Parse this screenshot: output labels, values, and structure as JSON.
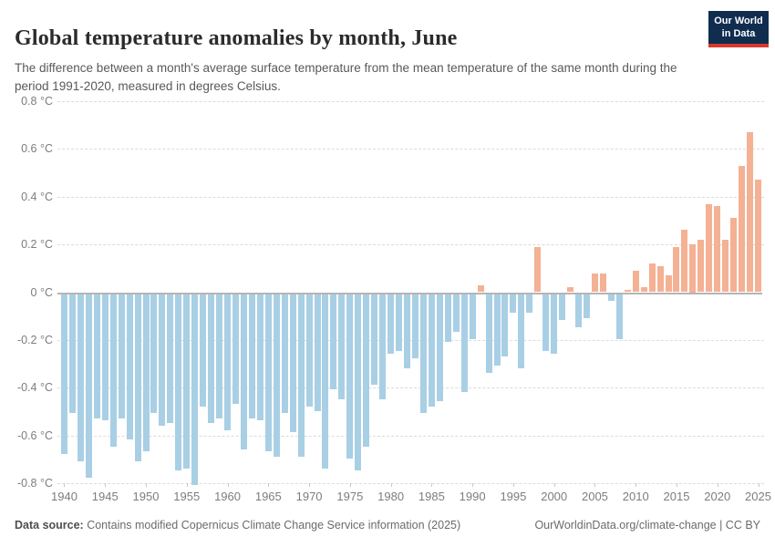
{
  "header": {
    "title": "Global temperature anomalies by month, June",
    "subtitle": "The difference between a month's average surface temperature from the mean temperature of the same month during the period 1991-2020, measured in degrees Celsius.",
    "logo": {
      "line1": "Our World",
      "line2": "in Data"
    }
  },
  "footer": {
    "source_label": "Data source:",
    "source_text": " Contains modified Copernicus Climate Change Service information (2025)",
    "link_text": "OurWorldinData.org/climate-change | CC BY"
  },
  "colors": {
    "positive_bar": "#f4b193",
    "negative_bar": "#a9cfe5",
    "zero_axis": "#b5b5b5",
    "gridline": "#dcdcdc",
    "tick_text": "#7d7d7d",
    "logo_navy": "#102d50",
    "logo_red": "#d7382f"
  },
  "chart_data": {
    "type": "bar",
    "title": "Global temperature anomalies by month, June",
    "xlabel": "",
    "ylabel": "degrees Celsius",
    "ylim": [
      -0.8,
      0.8
    ],
    "grid": "horizontal-dashed",
    "legend": "none",
    "x": [
      1940,
      1941,
      1942,
      1943,
      1944,
      1945,
      1946,
      1947,
      1948,
      1949,
      1950,
      1951,
      1952,
      1953,
      1954,
      1955,
      1956,
      1957,
      1958,
      1959,
      1960,
      1961,
      1962,
      1963,
      1964,
      1965,
      1966,
      1967,
      1968,
      1969,
      1970,
      1971,
      1972,
      1973,
      1974,
      1975,
      1976,
      1977,
      1978,
      1979,
      1980,
      1981,
      1982,
      1983,
      1984,
      1985,
      1986,
      1987,
      1988,
      1989,
      1990,
      1991,
      1992,
      1993,
      1994,
      1995,
      1996,
      1997,
      1998,
      1999,
      2000,
      2001,
      2002,
      2003,
      2004,
      2005,
      2006,
      2007,
      2008,
      2009,
      2010,
      2011,
      2012,
      2013,
      2014,
      2015,
      2016,
      2017,
      2018,
      2019,
      2020,
      2021,
      2022,
      2023,
      2024,
      2025
    ],
    "values": [
      -0.67,
      -0.5,
      -0.7,
      -0.77,
      -0.52,
      -0.53,
      -0.64,
      -0.52,
      -0.61,
      -0.7,
      -0.66,
      -0.5,
      -0.55,
      -0.54,
      -0.74,
      -0.73,
      -0.8,
      -0.47,
      -0.54,
      -0.52,
      -0.57,
      -0.46,
      -0.65,
      -0.52,
      -0.53,
      -0.66,
      -0.68,
      -0.5,
      -0.58,
      -0.68,
      -0.47,
      -0.49,
      -0.73,
      -0.4,
      -0.44,
      -0.69,
      -0.74,
      -0.64,
      -0.38,
      -0.44,
      -0.25,
      -0.24,
      -0.31,
      -0.27,
      -0.5,
      -0.47,
      -0.45,
      -0.2,
      -0.16,
      -0.41,
      -0.19,
      0.03,
      -0.33,
      -0.3,
      -0.26,
      -0.08,
      -0.31,
      -0.08,
      0.19,
      -0.24,
      -0.25,
      -0.11,
      0.02,
      -0.14,
      -0.1,
      0.08,
      0.08,
      -0.03,
      -0.19,
      0.01,
      0.09,
      0.02,
      0.12,
      0.11,
      0.07,
      0.19,
      0.26,
      0.2,
      0.22,
      0.37,
      0.36,
      0.22,
      0.31,
      0.53,
      0.67,
      0.47
    ],
    "yticks": [
      {
        "value": 0.8,
        "label": "0.8 °C"
      },
      {
        "value": 0.6,
        "label": "0.6 °C"
      },
      {
        "value": 0.4,
        "label": "0.4 °C"
      },
      {
        "value": 0.2,
        "label": "0.2 °C"
      },
      {
        "value": 0,
        "label": "0 °C"
      },
      {
        "value": -0.2,
        "label": "-0.2 °C"
      },
      {
        "value": -0.4,
        "label": "-0.4 °C"
      },
      {
        "value": -0.6,
        "label": "-0.6 °C"
      },
      {
        "value": -0.8,
        "label": "-0.8 °C"
      }
    ],
    "xticks": [
      "1940",
      "1945",
      "1950",
      "1955",
      "1960",
      "1965",
      "1970",
      "1975",
      "1980",
      "1985",
      "1990",
      "1995",
      "2000",
      "2005",
      "2010",
      "2015",
      "2020",
      "2025"
    ]
  }
}
